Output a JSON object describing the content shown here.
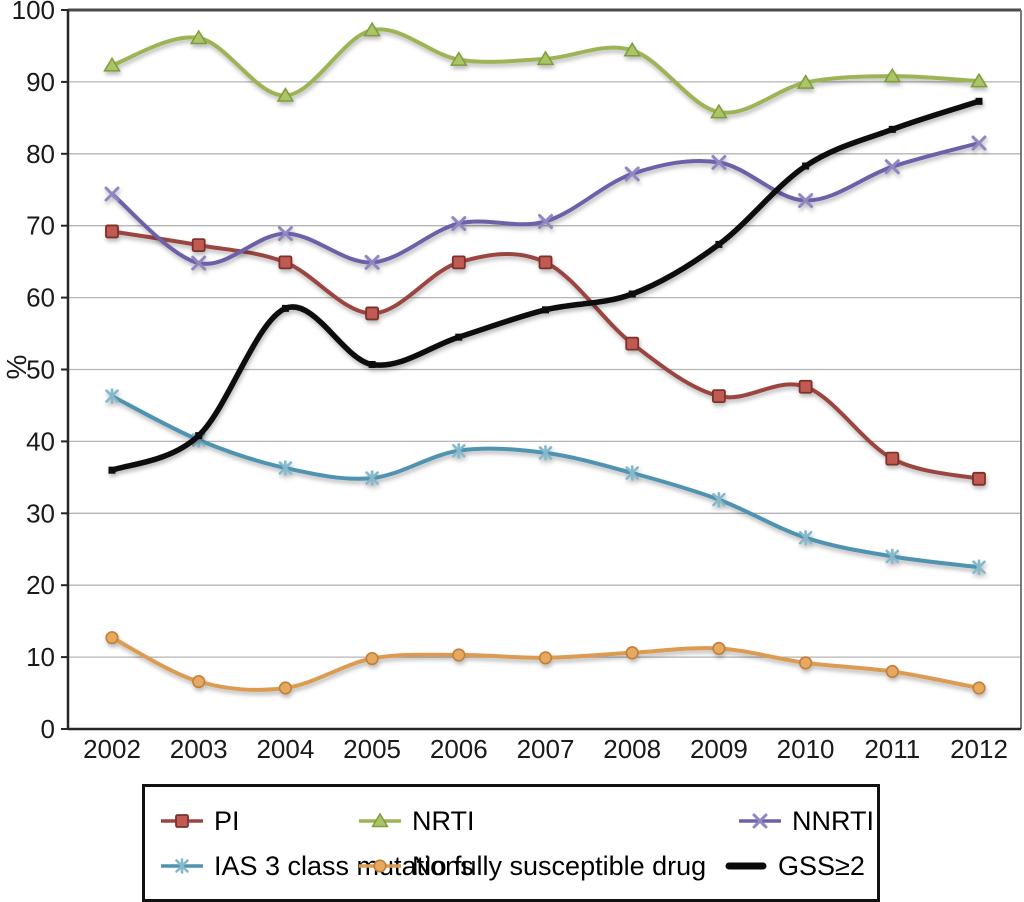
{
  "figure": {
    "title": "",
    "y_axis_title": "%"
  },
  "chart_data": {
    "type": "line",
    "title": "",
    "xlabel": "",
    "ylabel": "%",
    "ylim": [
      0,
      100
    ],
    "grid": true,
    "legend_position": "bottom-boxed",
    "xticks": [
      "2002",
      "2003",
      "2004",
      "2005",
      "2006",
      "2007",
      "2008",
      "2009",
      "2010",
      "2011",
      "2012"
    ],
    "yticks": [
      "0",
      "10",
      "20",
      "30",
      "40",
      "50",
      "60",
      "70",
      "80",
      "90",
      "100"
    ],
    "x": [
      2002,
      2003,
      2004,
      2005,
      2006,
      2007,
      2008,
      2009,
      2010,
      2011,
      2012
    ],
    "series": [
      {
        "name": "PI",
        "marker": "square",
        "color": "#9a4540",
        "marker_fill": "#c05a52",
        "marker_stroke": "#7c322c",
        "line_width": 4,
        "values": [
          69.2,
          67.3,
          64.9,
          57.8,
          64.9,
          64.9,
          53.6,
          46.3,
          47.6,
          37.6,
          34.8
        ]
      },
      {
        "name": "NRTI",
        "marker": "triangle",
        "color": "#9cb457",
        "marker_fill": "#abc566",
        "marker_stroke": "#7f9b3c",
        "line_width": 4,
        "values": [
          92.3,
          96.1,
          88.1,
          97.2,
          93.1,
          93.2,
          94.4,
          85.8,
          89.9,
          90.8,
          90.1
        ]
      },
      {
        "name": "NNRTI",
        "marker": "x",
        "color": "#6d61a8",
        "marker_fill": "#9186c2",
        "marker_stroke": "#9186c2",
        "line_width": 4,
        "values": [
          74.4,
          64.8,
          68.9,
          64.9,
          70.3,
          70.6,
          77.2,
          78.8,
          73.5,
          78.2,
          81.5
        ]
      },
      {
        "name": "IAS 3 class mutations",
        "marker": "asterisk",
        "color": "#4f93b0",
        "marker_fill": "#85b8cb",
        "marker_stroke": "#85b8cb",
        "line_width": 4,
        "values": [
          46.3,
          40.2,
          36.3,
          34.9,
          38.7,
          38.4,
          35.6,
          31.9,
          26.6,
          24.0,
          22.5
        ]
      },
      {
        "name": "No fully susceptible drug",
        "marker": "circle",
        "color": "#dc9b52",
        "marker_fill": "#e6a95f",
        "marker_stroke": "#c0803a",
        "line_width": 4,
        "values": [
          12.7,
          6.6,
          5.7,
          9.8,
          10.3,
          9.9,
          10.6,
          11.2,
          9.2,
          8.0,
          5.7
        ]
      },
      {
        "name": "GSS≥2",
        "marker": "dot",
        "color": "#0a0a0a",
        "marker_fill": "#0a0a0a",
        "marker_stroke": "#0a0a0a",
        "line_width": 5.5,
        "values": [
          36.0,
          40.8,
          58.5,
          50.7,
          54.5,
          58.3,
          60.5,
          67.4,
          78.3,
          83.4,
          87.3
        ]
      }
    ],
    "colors": {
      "gridline": "#b5b5b5",
      "plot_border": "#555555",
      "axis": "#262626",
      "tick_text": "#1a1a1a"
    }
  }
}
